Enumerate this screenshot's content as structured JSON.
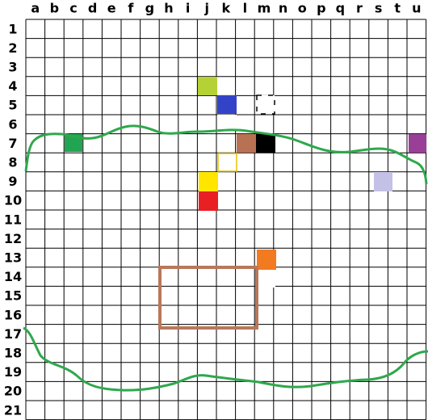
{
  "columns": [
    "a",
    "b",
    "c",
    "d",
    "e",
    "f",
    "g",
    "h",
    "i",
    "j",
    "k",
    "l",
    "m",
    "n",
    "o",
    "p",
    "q",
    "r",
    "s",
    "t",
    "u"
  ],
  "rows": [
    1,
    2,
    3,
    4,
    5,
    6,
    7,
    8,
    9,
    10,
    11,
    12,
    13,
    14,
    15,
    16,
    17,
    18,
    19,
    20,
    21
  ]
}
